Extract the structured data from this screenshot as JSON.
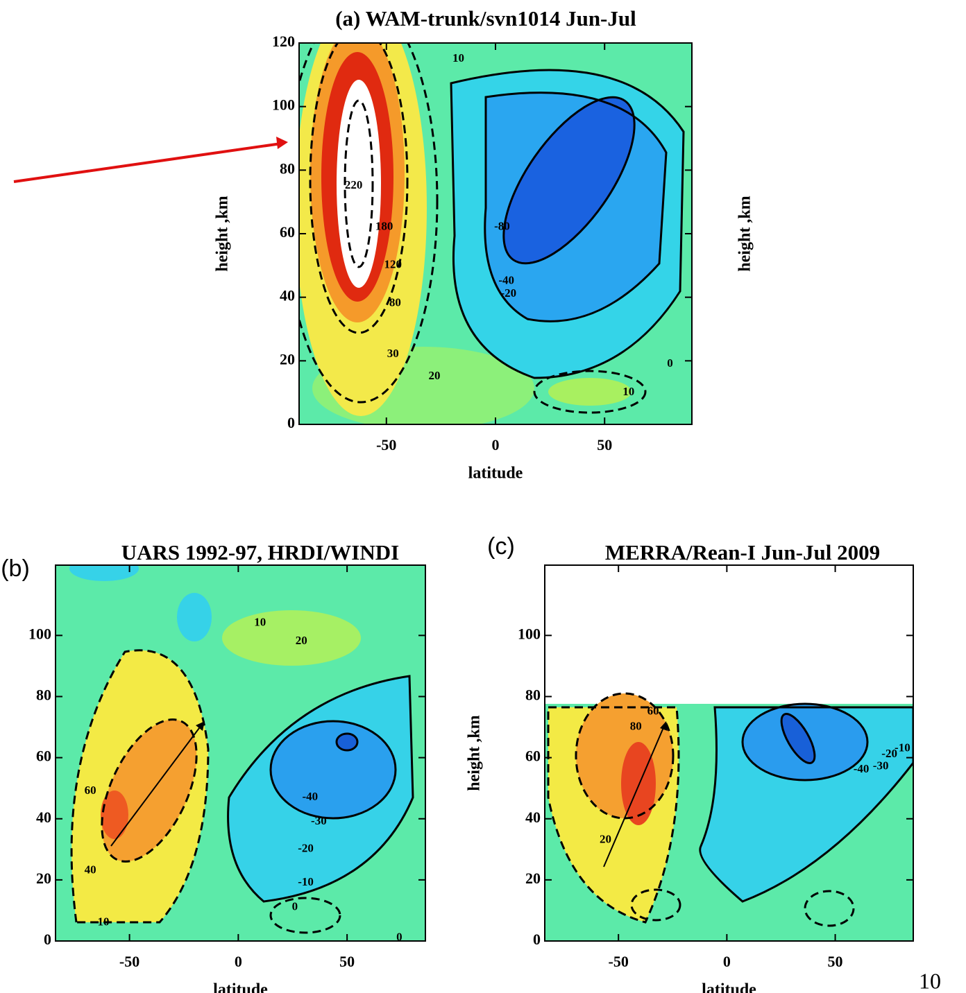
{
  "chart_data": [
    {
      "type": "contour",
      "title": "(a)  WAM-trunk/svn1014 Jun-Jul",
      "xlabel": "latitude",
      "ylabel": "height ,km",
      "ylabel_right": "height ,km",
      "xlim": [
        -90,
        90
      ],
      "ylim": [
        0,
        120
      ],
      "xticks": [
        -50,
        0,
        50
      ],
      "yticks": [
        0,
        20,
        40,
        60,
        80,
        100,
        120
      ],
      "contour_labels": [
        {
          "value": 220,
          "x": -65,
          "y": 75
        },
        {
          "value": 180,
          "x": -51,
          "y": 62
        },
        {
          "value": 120,
          "x": -47,
          "y": 50
        },
        {
          "value": 80,
          "x": -46,
          "y": 38
        },
        {
          "value": 30,
          "x": -47,
          "y": 22
        },
        {
          "value": 20,
          "x": -28,
          "y": 15
        },
        {
          "value": 10,
          "x": -17,
          "y": 115
        },
        {
          "value": 0,
          "x": 80,
          "y": 19
        },
        {
          "value": 10,
          "x": 61,
          "y": 10
        },
        {
          "value": -80,
          "x": 3,
          "y": 62
        },
        {
          "value": -40,
          "x": 5,
          "y": 45
        },
        {
          "value": -20,
          "x": 6,
          "y": 41
        }
      ]
    },
    {
      "type": "contour",
      "panel_label": "(b)",
      "title": "UARS 1992-97, HRDI/WINDI",
      "xlabel": "latitude",
      "xlim": [
        -84,
        86
      ],
      "ylim": [
        0,
        123
      ],
      "xticks": [
        -50,
        0,
        50
      ],
      "yticks": [
        0,
        20,
        40,
        60,
        80,
        100
      ],
      "contour_labels": [
        {
          "value": -40,
          "x": 33,
          "y": 47
        },
        {
          "value": -30,
          "x": 37,
          "y": 39
        },
        {
          "value": -20,
          "x": 31,
          "y": 30
        },
        {
          "value": -10,
          "x": 31,
          "y": 19
        },
        {
          "value": 0,
          "x": 26,
          "y": 11
        },
        {
          "value": 10,
          "x": 10,
          "y": 104
        },
        {
          "value": 20,
          "x": 29,
          "y": 98
        },
        {
          "value": 60,
          "x": -68,
          "y": 49
        },
        {
          "value": 40,
          "x": -68,
          "y": 23
        },
        {
          "value": 10,
          "x": -62,
          "y": 6
        },
        {
          "value": 0,
          "x": 74,
          "y": 1
        }
      ]
    },
    {
      "type": "contour",
      "panel_label": "(c)",
      "title": "MERRA/Rean-I  Jun-Jul 2009",
      "xlabel": "latitude",
      "ylabel": "height ,km",
      "xlim": [
        -84,
        86
      ],
      "ylim": [
        0,
        123
      ],
      "xticks": [
        -50,
        0,
        50
      ],
      "yticks": [
        0,
        20,
        40,
        60,
        80,
        100
      ],
      "contour_labels": [
        {
          "value": 80,
          "x": -42,
          "y": 70
        },
        {
          "value": 60,
          "x": -34,
          "y": 75
        },
        {
          "value": -40,
          "x": 62,
          "y": 56
        },
        {
          "value": -30,
          "x": 71,
          "y": 57
        },
        {
          "value": -20,
          "x": 75,
          "y": 61
        },
        {
          "value": -10,
          "x": 81,
          "y": 63
        },
        {
          "value": 20,
          "x": -56,
          "y": 33
        }
      ]
    }
  ],
  "page_number": "10"
}
